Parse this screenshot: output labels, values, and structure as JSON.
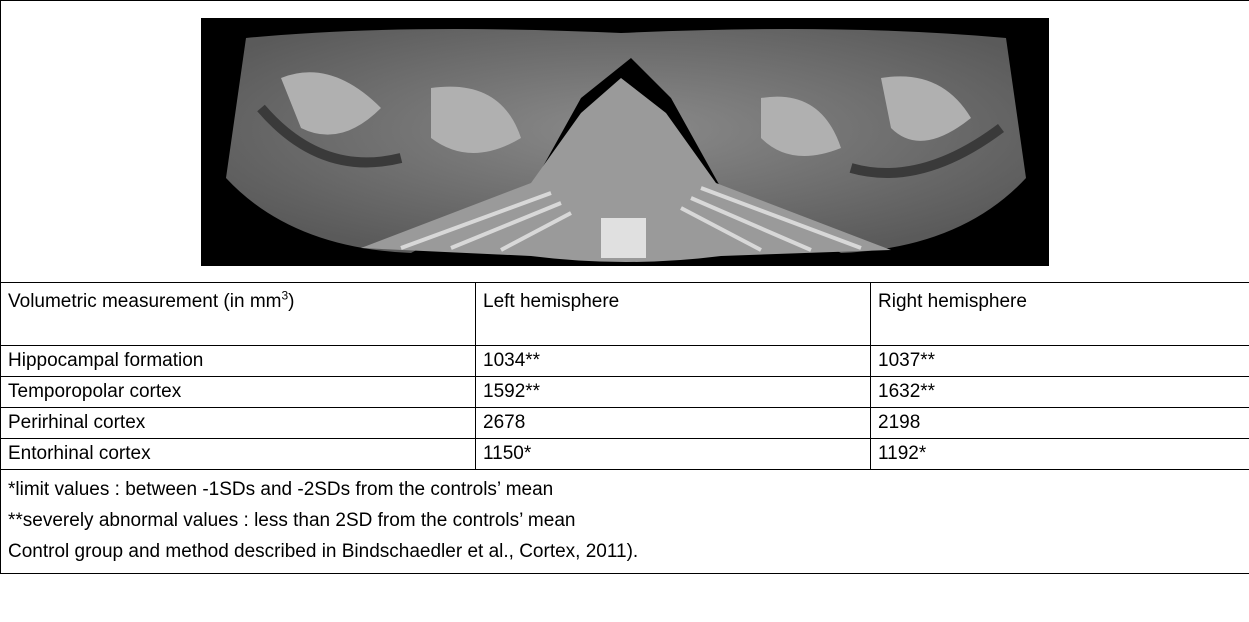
{
  "table": {
    "header": [
      {
        "text": "Volumetric measurement (in mm",
        "sup": "3",
        "after": ")"
      },
      {
        "text": "Left hemisphere"
      },
      {
        "text": "Right hemisphere"
      }
    ],
    "rows": [
      [
        "Hippocampal formation",
        "1034**",
        "1037**"
      ],
      [
        "Temporopolar cortex",
        "1592**",
        "1632**"
      ],
      [
        "Perirhinal cortex",
        "2678",
        "2198"
      ],
      [
        "Entorhinal cortex",
        "1150*",
        "1192*"
      ]
    ],
    "notes": [
      "*limit values : between -1SDs and -2SDs from the controls’ mean",
      "**severely abnormal values : less than 2SD from the controls’ mean",
      "Control group and method described in Bindschaedler et al., Cortex, 2011)."
    ]
  }
}
